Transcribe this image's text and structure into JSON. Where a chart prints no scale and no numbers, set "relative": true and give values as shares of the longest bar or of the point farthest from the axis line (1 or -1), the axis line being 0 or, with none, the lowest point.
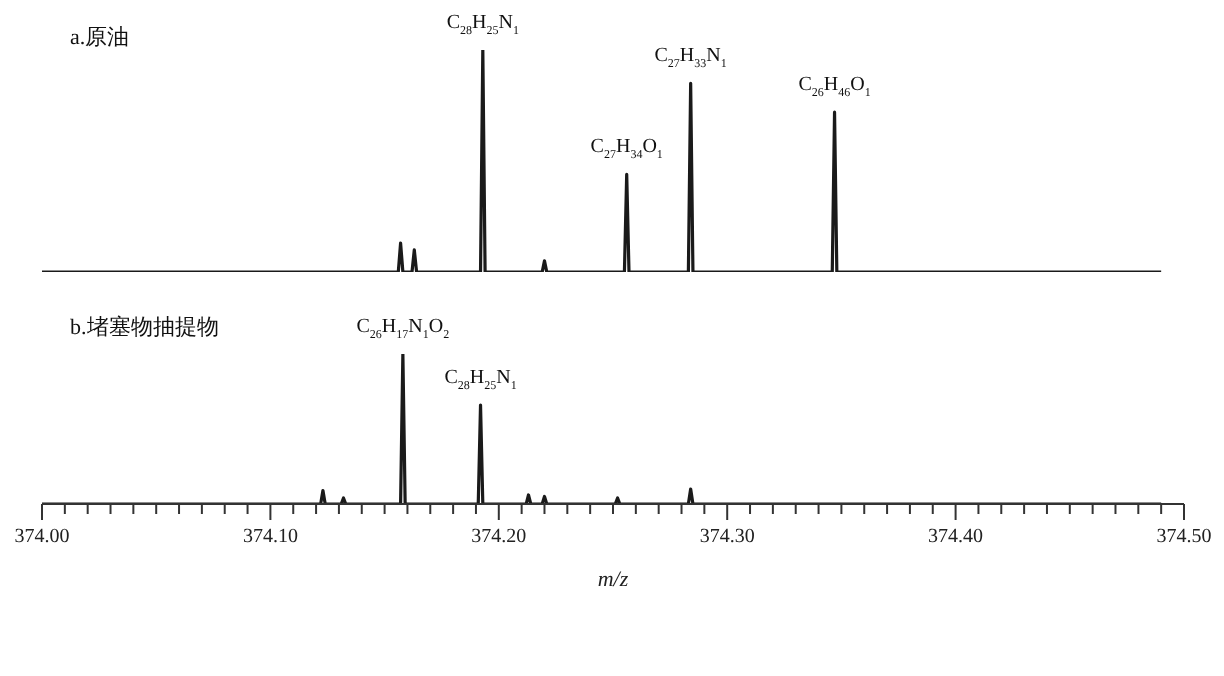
{
  "chart_data": [
    {
      "type": "line",
      "title": "a.原油",
      "relative": true,
      "tick_labels": false,
      "marker": "none",
      "line_style": "solid",
      "xlim": [
        374.0,
        374.5
      ],
      "series": [
        {
          "color": "#1a1a1a",
          "x": [
            374.0,
            374.156,
            374.157,
            374.158,
            374.162,
            374.163,
            374.164,
            374.192,
            374.193,
            374.194,
            374.219,
            374.22,
            374.221,
            374.255,
            374.256,
            374.257,
            374.283,
            374.284,
            374.285,
            374.346,
            374.347,
            374.348,
            374.49
          ],
          "values": [
            0,
            0,
            0.13,
            0,
            0,
            0.1,
            0,
            0,
            1,
            0,
            0,
            0.05,
            0,
            0,
            0.44,
            0,
            0,
            0.85,
            0,
            0,
            0.72,
            0,
            0
          ]
        }
      ],
      "annotations": [
        {
          "text": "C$_{28}$H$_{25}$N$_{1}$",
          "x": 374.193,
          "y": 1
        },
        {
          "text": "C$_{27}$H$_{34}$O$_{1}$",
          "x": 374.256,
          "y": 0.44
        },
        {
          "text": "C$_{27}$H$_{33}$N$_{1}$",
          "x": 374.284,
          "y": 0.85
        },
        {
          "text": "C$_{26}$H$_{46}$O$_{1}$",
          "x": 374.347,
          "y": 0.72
        }
      ]
    },
    {
      "type": "line",
      "title": "b.堵塞物抽提物",
      "xlabel": "m/z",
      "relative": true,
      "tick_labels": "x",
      "marker": "none",
      "line_style": "solid",
      "xlim": [
        374.0,
        374.5
      ],
      "xticks": [
        {
          "value": 374.0,
          "label": "374.00"
        },
        {
          "value": 374.01,
          "label": null
        },
        {
          "value": 374.02,
          "label": null
        },
        {
          "value": 374.03,
          "label": null
        },
        {
          "value": 374.04,
          "label": null
        },
        {
          "value": 374.05,
          "label": null
        },
        {
          "value": 374.06,
          "label": null
        },
        {
          "value": 374.07,
          "label": null
        },
        {
          "value": 374.08,
          "label": null
        },
        {
          "value": 374.09,
          "label": null
        },
        {
          "value": 374.1,
          "label": "374.10"
        },
        {
          "value": 374.11,
          "label": null
        },
        {
          "value": 374.12,
          "label": null
        },
        {
          "value": 374.13,
          "label": null
        },
        {
          "value": 374.14,
          "label": null
        },
        {
          "value": 374.15,
          "label": null
        },
        {
          "value": 374.16,
          "label": null
        },
        {
          "value": 374.17,
          "label": null
        },
        {
          "value": 374.18,
          "label": null
        },
        {
          "value": 374.19,
          "label": null
        },
        {
          "value": 374.2,
          "label": "374.20"
        },
        {
          "value": 374.21,
          "label": null
        },
        {
          "value": 374.22,
          "label": null
        },
        {
          "value": 374.23,
          "label": null
        },
        {
          "value": 374.24,
          "label": null
        },
        {
          "value": 374.25,
          "label": null
        },
        {
          "value": 374.26,
          "label": null
        },
        {
          "value": 374.27,
          "label": null
        },
        {
          "value": 374.28,
          "label": null
        },
        {
          "value": 374.29,
          "label": null
        },
        {
          "value": 374.3,
          "label": "374.30"
        },
        {
          "value": 374.31,
          "label": null
        },
        {
          "value": 374.32,
          "label": null
        },
        {
          "value": 374.33,
          "label": null
        },
        {
          "value": 374.34,
          "label": null
        },
        {
          "value": 374.35,
          "label": null
        },
        {
          "value": 374.36,
          "label": null
        },
        {
          "value": 374.37,
          "label": null
        },
        {
          "value": 374.38,
          "label": null
        },
        {
          "value": 374.39,
          "label": null
        },
        {
          "value": 374.4,
          "label": "374.40"
        },
        {
          "value": 374.41,
          "label": null
        },
        {
          "value": 374.42,
          "label": null
        },
        {
          "value": 374.43,
          "label": null
        },
        {
          "value": 374.44,
          "label": null
        },
        {
          "value": 374.45,
          "label": null
        },
        {
          "value": 374.46,
          "label": null
        },
        {
          "value": 374.47,
          "label": null
        },
        {
          "value": 374.48,
          "label": null
        },
        {
          "value": 374.49,
          "label": null
        },
        {
          "value": 374.5,
          "label": "374.50"
        }
      ],
      "series": [
        {
          "color": "#1a1a1a",
          "x": [
            374.0,
            374.122,
            374.123,
            374.124,
            374.131,
            374.132,
            374.133,
            374.157,
            374.158,
            374.159,
            374.191,
            374.192,
            374.193,
            374.212,
            374.213,
            374.214,
            374.219,
            374.22,
            374.221,
            374.251,
            374.252,
            374.253,
            374.283,
            374.284,
            374.285,
            374.49
          ],
          "values": [
            0,
            0,
            0.09,
            0,
            0,
            0.04,
            0,
            0,
            1,
            0,
            0,
            0.66,
            0,
            0,
            0.06,
            0,
            0,
            0.05,
            0,
            0,
            0.04,
            0,
            0,
            0.1,
            0,
            0
          ]
        }
      ],
      "annotations": [
        {
          "text": "C$_{26}$H$_{17}$N$_{1}$O$_{2}$",
          "x": 374.158,
          "y": 1
        },
        {
          "text": "C$_{28}$H$_{25}$N$_{1}$",
          "x": 374.192,
          "y": 0.66
        }
      ]
    }
  ]
}
